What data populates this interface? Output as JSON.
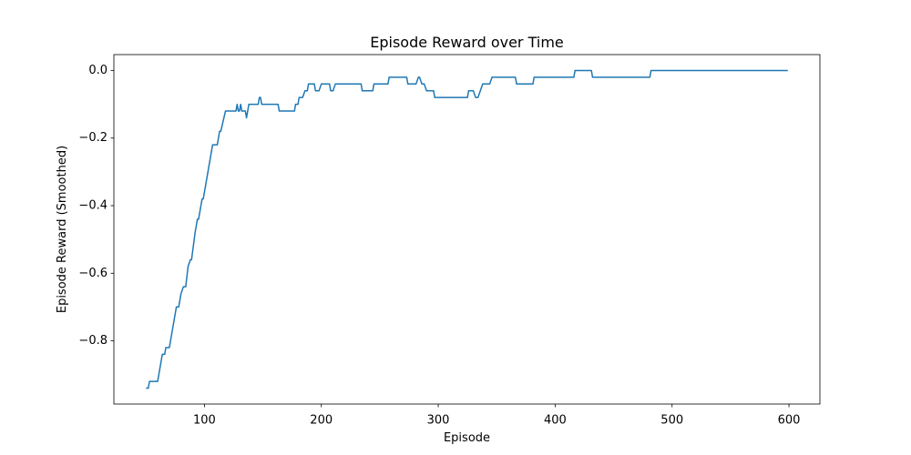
{
  "chart_data": {
    "type": "line",
    "title": "Episode Reward over Time",
    "x_label": "Episode",
    "y_label": "Episode Reward (Smoothed)",
    "x": [
      50,
      52,
      53,
      60,
      64,
      66,
      67,
      70,
      75,
      76,
      78,
      80,
      82,
      84,
      86,
      88,
      89,
      92,
      94,
      95,
      98,
      99,
      106,
      107,
      111,
      113,
      114,
      118,
      127,
      128,
      129,
      130,
      131,
      132,
      135,
      136,
      137,
      138,
      146,
      147,
      148,
      149,
      163,
      164,
      177,
      178,
      180,
      181,
      184,
      186,
      188,
      189,
      194,
      195,
      198,
      200,
      207,
      208,
      210,
      212,
      234,
      235,
      244,
      245,
      257,
      258,
      273,
      274,
      281,
      283,
      284,
      286,
      288,
      290,
      296,
      297,
      325,
      326,
      330,
      332,
      334,
      336,
      338,
      344,
      346,
      366,
      367,
      381,
      382,
      416,
      417,
      431,
      432,
      481,
      482,
      599
    ],
    "series": [
      {
        "name": "Episode Reward (Smoothed)",
        "color": "#1f77b4",
        "values": [
          -0.94,
          -0.94,
          -0.92,
          -0.92,
          -0.84,
          -0.84,
          -0.82,
          -0.82,
          -0.72,
          -0.7,
          -0.7,
          -0.66,
          -0.64,
          -0.64,
          -0.58,
          -0.56,
          -0.56,
          -0.48,
          -0.44,
          -0.44,
          -0.38,
          -0.38,
          -0.24,
          -0.22,
          -0.22,
          -0.18,
          -0.18,
          -0.12,
          -0.12,
          -0.1,
          -0.12,
          -0.12,
          -0.1,
          -0.12,
          -0.12,
          -0.14,
          -0.12,
          -0.1,
          -0.1,
          -0.08,
          -0.08,
          -0.1,
          -0.1,
          -0.12,
          -0.12,
          -0.1,
          -0.1,
          -0.08,
          -0.08,
          -0.06,
          -0.06,
          -0.04,
          -0.04,
          -0.06,
          -0.06,
          -0.04,
          -0.04,
          -0.06,
          -0.06,
          -0.04,
          -0.04,
          -0.06,
          -0.06,
          -0.04,
          -0.04,
          -0.02,
          -0.02,
          -0.04,
          -0.04,
          -0.02,
          -0.02,
          -0.04,
          -0.04,
          -0.06,
          -0.06,
          -0.08,
          -0.08,
          -0.06,
          -0.06,
          -0.08,
          -0.08,
          -0.06,
          -0.04,
          -0.04,
          -0.02,
          -0.02,
          -0.04,
          -0.04,
          -0.02,
          -0.02,
          0,
          0,
          -0.02,
          -0.02,
          0,
          0
        ]
      }
    ],
    "xlim": [
      22.55,
      626.45
    ],
    "ylim": [
      -0.987,
      0.047
    ],
    "xticks": [
      100,
      200,
      300,
      400,
      500,
      600
    ],
    "yticks": [
      {
        "value": -0.8,
        "label": "−0.8"
      },
      {
        "value": -0.6,
        "label": "−0.6"
      },
      {
        "value": -0.4,
        "label": "−0.4"
      },
      {
        "value": -0.2,
        "label": "−0.2"
      },
      {
        "value": 0,
        "label": "0.0"
      }
    ],
    "grid": false
  }
}
